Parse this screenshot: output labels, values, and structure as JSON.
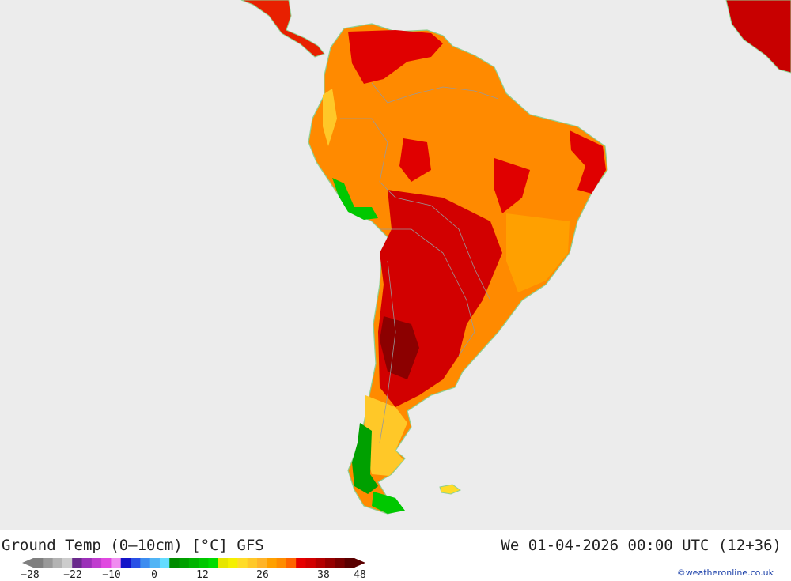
{
  "map": {
    "title": "Ground Temp (0–10cm) [°C] GFS",
    "valid_time": "We 01-04-2026 00:00 UTC (12+36)",
    "credit": "©weatheronline.co.uk",
    "colors": {
      "ocean": "#ececec",
      "coast": "#8fd08f",
      "border": "#999999"
    },
    "legend": {
      "colors": [
        "#7f7f7f",
        "#999999",
        "#b3b3b3",
        "#cccccc",
        "#6a2a8c",
        "#9b30b8",
        "#c03ccf",
        "#e048e0",
        "#f08cf0",
        "#1414c8",
        "#2850e6",
        "#3c8cf0",
        "#50b4f5",
        "#64dcff",
        "#008c00",
        "#00a000",
        "#00b400",
        "#00c800",
        "#00dc00",
        "#e6e600",
        "#f5f000",
        "#ffdc28",
        "#ffc828",
        "#ffb428",
        "#ffa000",
        "#ff8c00",
        "#ff6400",
        "#e60000",
        "#d20000",
        "#b40000",
        "#960000",
        "#780000",
        "#5a0000"
      ],
      "tick_labels": [
        "−28",
        "−22",
        "−10",
        "0",
        "12",
        "26",
        "38",
        "48"
      ]
    }
  }
}
